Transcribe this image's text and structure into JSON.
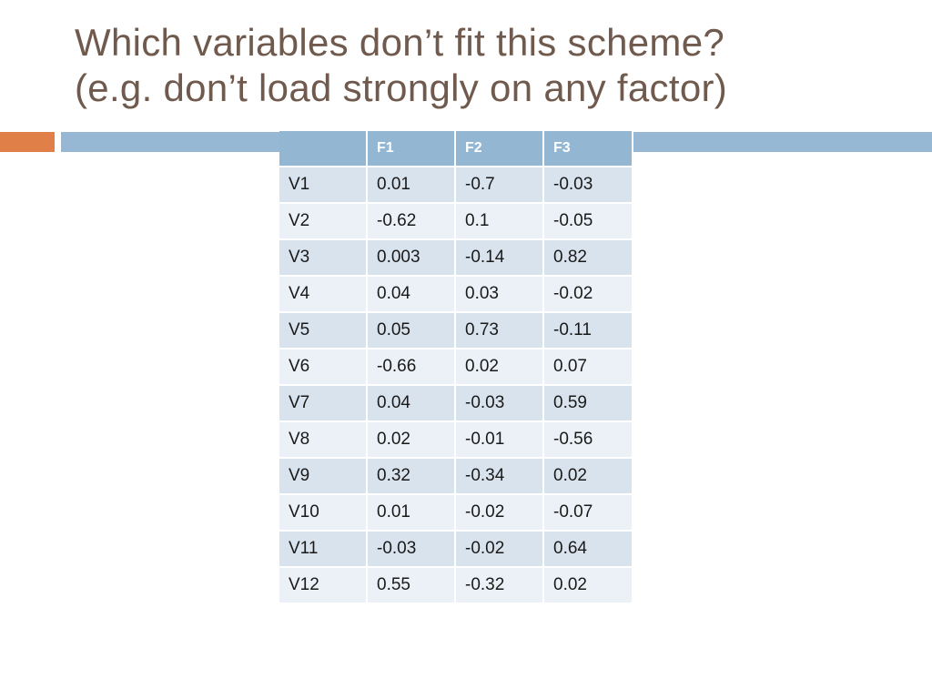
{
  "slide": {
    "title_line1": "Which variables don’t fit this scheme?",
    "title_line2": "(e.g. don’t load strongly on any factor)"
  },
  "colors": {
    "title": "#6f5a4d",
    "accent_orange": "#e07f48",
    "accent_blue": "#96b8d4",
    "header_fill": "#93b6d3",
    "row_dark": "#d9e3ee",
    "row_light": "#ecf1f7"
  },
  "table": {
    "headers": [
      "",
      "F1",
      "F2",
      "F3"
    ],
    "rows": [
      [
        "V1",
        "0.01",
        "-0.7",
        "-0.03"
      ],
      [
        "V2",
        "-0.62",
        "0.1",
        "-0.05"
      ],
      [
        "V3",
        "0.003",
        "-0.14",
        "0.82"
      ],
      [
        "V4",
        "0.04",
        "0.03",
        "-0.02"
      ],
      [
        "V5",
        "0.05",
        "0.73",
        "-0.11"
      ],
      [
        "V6",
        "-0.66",
        "0.02",
        "0.07"
      ],
      [
        "V7",
        "0.04",
        "-0.03",
        "0.59"
      ],
      [
        "V8",
        "0.02",
        "-0.01",
        "-0.56"
      ],
      [
        "V9",
        "0.32",
        "-0.34",
        "0.02"
      ],
      [
        "V10",
        "0.01",
        "-0.02",
        "-0.07"
      ],
      [
        "V11",
        "-0.03",
        "-0.02",
        "0.64"
      ],
      [
        "V12",
        "0.55",
        "-0.32",
        "0.02"
      ]
    ]
  }
}
